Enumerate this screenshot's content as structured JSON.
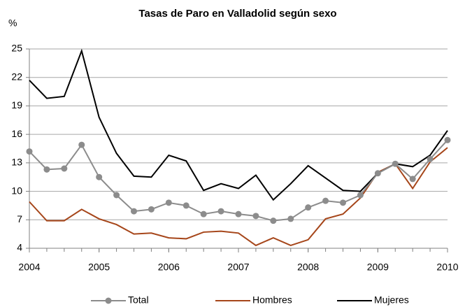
{
  "chart_data": {
    "type": "line",
    "title": "Tasas de Paro en Valladolid según sexo",
    "y_label": "%",
    "x": [
      2004,
      2004.25,
      2004.5,
      2004.75,
      2005,
      2005.25,
      2005.5,
      2005.75,
      2006,
      2006.25,
      2006.5,
      2006.75,
      2007,
      2007.25,
      2007.5,
      2007.75,
      2008,
      2008.25,
      2008.5,
      2008.75,
      2009,
      2009.25,
      2009.5,
      2009.75,
      2010
    ],
    "xlim": [
      2004,
      2010
    ],
    "xticks": [
      2004,
      2005,
      2006,
      2007,
      2008,
      2009,
      2010
    ],
    "ylim": [
      4,
      25
    ],
    "yticks": [
      4,
      7,
      10,
      13,
      16,
      19,
      22,
      25
    ],
    "grid": true,
    "legend": "bottom",
    "series": [
      {
        "name": "Total",
        "color": "#8c8c8c",
        "marker": true,
        "values": [
          14.2,
          12.3,
          12.4,
          14.9,
          11.5,
          9.6,
          7.9,
          8.1,
          8.8,
          8.5,
          7.6,
          7.9,
          7.6,
          7.4,
          6.9,
          7.1,
          8.3,
          9.0,
          8.8,
          9.6,
          11.9,
          12.9,
          11.3,
          13.4,
          15.4
        ]
      },
      {
        "name": "Hombres",
        "color": "#a6461a",
        "marker": false,
        "values": [
          8.9,
          6.9,
          6.9,
          8.1,
          7.1,
          6.5,
          5.5,
          5.6,
          5.1,
          5.0,
          5.7,
          5.8,
          5.6,
          4.3,
          5.1,
          4.3,
          4.9,
          7.1,
          7.6,
          9.3,
          12.0,
          12.9,
          10.3,
          13.1,
          14.6
        ]
      },
      {
        "name": "Mujeres",
        "color": "#000000",
        "marker": false,
        "values": [
          21.7,
          19.8,
          20.0,
          24.8,
          17.8,
          14.0,
          11.6,
          11.5,
          13.8,
          13.2,
          10.1,
          10.8,
          10.3,
          11.7,
          9.1,
          10.8,
          12.7,
          11.4,
          10.1,
          10.0,
          11.9,
          12.9,
          12.6,
          13.8,
          16.4
        ]
      }
    ]
  }
}
